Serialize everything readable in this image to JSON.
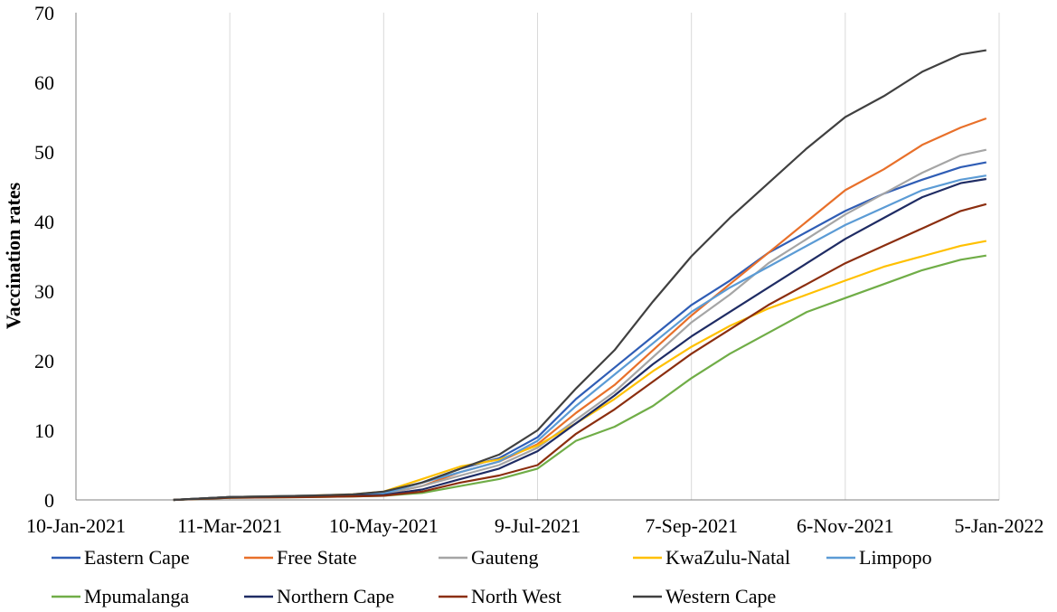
{
  "chart_data": {
    "type": "line",
    "title": "",
    "xlabel": "",
    "ylabel": "Vaccination rates",
    "ylim": [
      0,
      70
    ],
    "yticks": [
      0,
      10,
      20,
      30,
      40,
      50,
      60,
      70
    ],
    "x_tick_labels": [
      "10-Jan-2021",
      "11-Mar-2021",
      "10-May-2021",
      "9-Jul-2021",
      "7-Sep-2021",
      "6-Nov-2021",
      "5-Jan-2022"
    ],
    "x_tick_days": [
      0,
      60,
      120,
      180,
      240,
      300,
      360
    ],
    "xlim_days": [
      0,
      360
    ],
    "x_unit": "days since 10-Jan-2021",
    "grid": "vertical",
    "legend_position": "bottom",
    "series": [
      {
        "name": "Eastern Cape",
        "color": "#2F5DB5",
        "x": [
          38,
          60,
          90,
          108,
          120,
          135,
          150,
          165,
          180,
          195,
          210,
          225,
          240,
          255,
          270,
          285,
          300,
          315,
          330,
          345,
          355
        ],
        "values": [
          0,
          0.4,
          0.6,
          0.7,
          0.9,
          2.5,
          4.5,
          6.0,
          9.0,
          14.5,
          19.0,
          23.5,
          28.0,
          31.5,
          35.5,
          38.5,
          41.5,
          44.0,
          46.0,
          47.8,
          48.5
        ]
      },
      {
        "name": "Free State",
        "color": "#E8702A",
        "x": [
          38,
          60,
          90,
          108,
          120,
          135,
          150,
          165,
          180,
          195,
          210,
          225,
          240,
          255,
          270,
          285,
          300,
          315,
          330,
          345,
          355
        ],
        "values": [
          0,
          0.4,
          0.5,
          0.6,
          0.8,
          2.0,
          4.0,
          5.5,
          8.0,
          12.5,
          16.5,
          21.5,
          26.5,
          31.0,
          35.5,
          40.0,
          44.5,
          47.5,
          51.0,
          53.5,
          54.8
        ]
      },
      {
        "name": "Gauteng",
        "color": "#A5A5A5",
        "x": [
          38,
          60,
          90,
          108,
          120,
          135,
          150,
          165,
          180,
          195,
          210,
          225,
          240,
          255,
          270,
          285,
          300,
          315,
          330,
          345,
          355
        ],
        "values": [
          0,
          0.4,
          0.5,
          0.6,
          0.8,
          2.0,
          3.5,
          5.0,
          7.5,
          11.5,
          15.5,
          20.5,
          25.5,
          29.5,
          34.0,
          37.5,
          41.0,
          44.0,
          47.0,
          49.5,
          50.3
        ]
      },
      {
        "name": "KwaZulu-Natal",
        "color": "#FFC000",
        "x": [
          38,
          60,
          90,
          108,
          120,
          135,
          150,
          165,
          180,
          195,
          210,
          225,
          240,
          255,
          270,
          285,
          300,
          315,
          330,
          345,
          355
        ],
        "values": [
          0,
          0.4,
          0.6,
          0.8,
          1.2,
          3.0,
          4.8,
          5.8,
          7.8,
          11.0,
          14.5,
          18.5,
          22.0,
          25.0,
          27.5,
          29.5,
          31.5,
          33.5,
          35.0,
          36.5,
          37.2
        ]
      },
      {
        "name": "Limpopo",
        "color": "#5B9BD5",
        "x": [
          38,
          60,
          90,
          108,
          120,
          135,
          150,
          165,
          180,
          195,
          210,
          225,
          240,
          255,
          270,
          285,
          300,
          315,
          330,
          345,
          355
        ],
        "values": [
          0,
          0.4,
          0.6,
          0.7,
          0.9,
          2.5,
          4.0,
          5.5,
          8.5,
          13.5,
          18.0,
          22.5,
          27.0,
          30.5,
          33.5,
          36.5,
          39.5,
          42.0,
          44.5,
          46.0,
          46.6
        ]
      },
      {
        "name": "Mpumalanga",
        "color": "#70AD47",
        "x": [
          38,
          60,
          90,
          108,
          120,
          135,
          150,
          165,
          180,
          195,
          210,
          225,
          240,
          255,
          270,
          285,
          300,
          315,
          330,
          345,
          355
        ],
        "values": [
          0,
          0.3,
          0.4,
          0.5,
          0.6,
          1.0,
          2.0,
          3.0,
          4.5,
          8.5,
          10.5,
          13.5,
          17.5,
          21.0,
          24.0,
          27.0,
          29.0,
          31.0,
          33.0,
          34.5,
          35.1
        ]
      },
      {
        "name": "Northern Cape",
        "color": "#1F2C64",
        "x": [
          38,
          60,
          90,
          108,
          120,
          135,
          150,
          165,
          180,
          195,
          210,
          225,
          240,
          255,
          270,
          285,
          300,
          315,
          330,
          345,
          355
        ],
        "values": [
          0,
          0.4,
          0.5,
          0.6,
          0.7,
          1.5,
          3.0,
          4.5,
          7.0,
          11.0,
          15.0,
          19.5,
          23.5,
          27.0,
          30.5,
          34.0,
          37.5,
          40.5,
          43.5,
          45.5,
          46.1
        ]
      },
      {
        "name": "North West",
        "color": "#8B2E0F",
        "x": [
          38,
          60,
          90,
          108,
          120,
          135,
          150,
          165,
          180,
          195,
          210,
          225,
          240,
          255,
          270,
          285,
          300,
          315,
          330,
          345,
          355
        ],
        "values": [
          0,
          0.3,
          0.4,
          0.5,
          0.6,
          1.2,
          2.5,
          3.5,
          5.0,
          9.5,
          13.0,
          17.0,
          21.0,
          24.5,
          28.0,
          31.0,
          34.0,
          36.5,
          39.0,
          41.5,
          42.5
        ]
      },
      {
        "name": "Western Cape",
        "color": "#404040",
        "x": [
          38,
          60,
          90,
          108,
          120,
          135,
          150,
          165,
          180,
          195,
          210,
          225,
          240,
          255,
          270,
          285,
          300,
          315,
          330,
          345,
          355
        ],
        "values": [
          0,
          0.4,
          0.6,
          0.8,
          1.2,
          2.5,
          4.5,
          6.5,
          10.0,
          16.0,
          21.5,
          28.5,
          35.0,
          40.5,
          45.5,
          50.5,
          55.0,
          58.0,
          61.5,
          64.0,
          64.6
        ]
      }
    ]
  }
}
